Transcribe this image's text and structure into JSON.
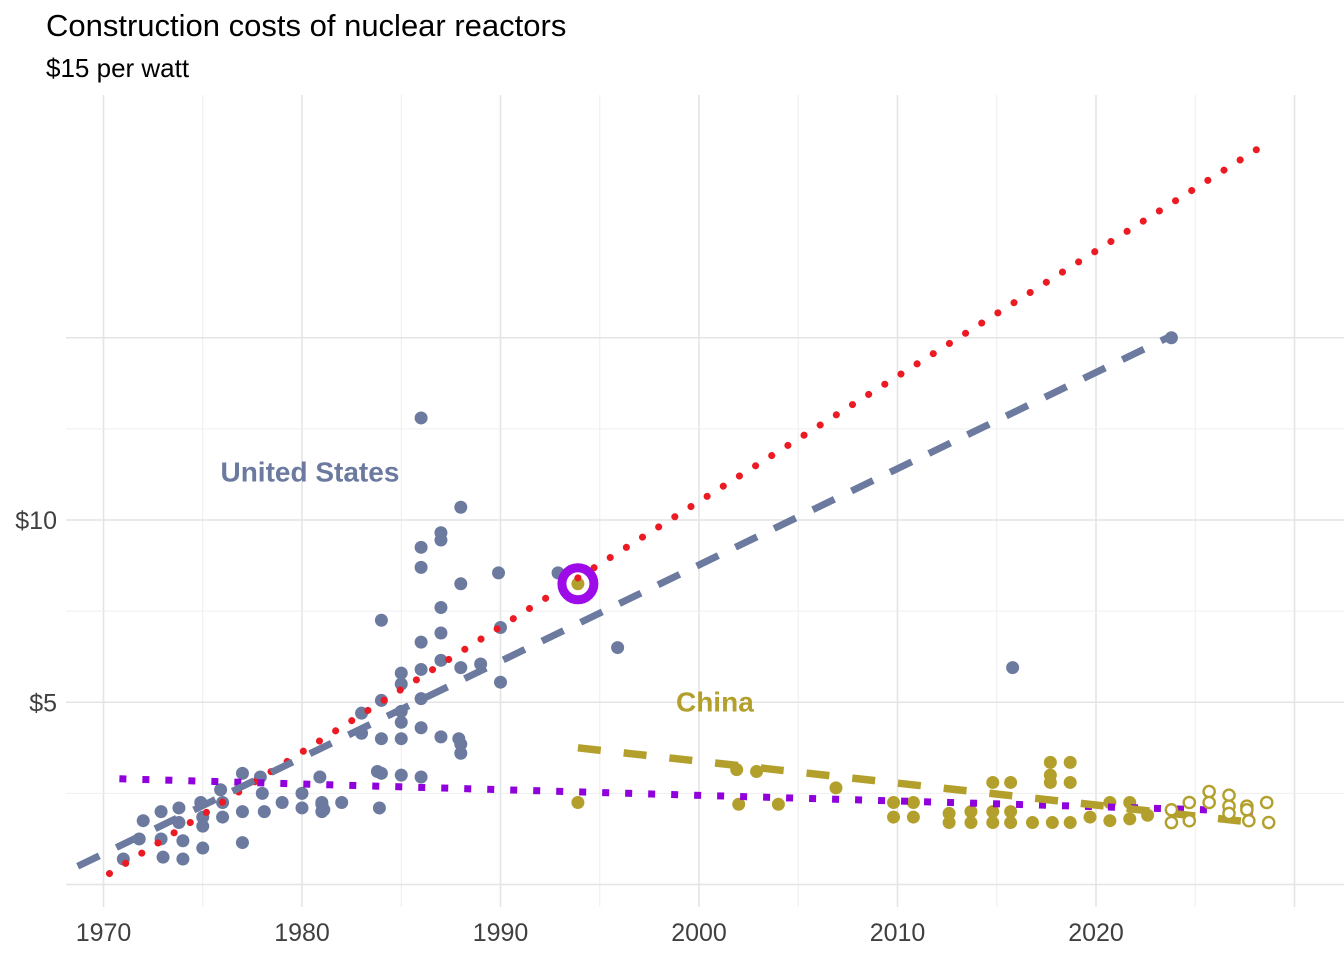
{
  "title": "Construction costs of nuclear reactors",
  "subtitle": "$15 per watt",
  "colors": {
    "us": "#6b7a9e",
    "china": "#b3a02c",
    "red_projection": "#ec1b23",
    "purple_projection": "#8f00dc",
    "highlight_ring": "#9d0be8",
    "grid_major": "#e4e4e4",
    "grid_minor": "#efefef",
    "axis_text": "#404040",
    "background": "#ffffff"
  },
  "chart_data": {
    "type": "scatter",
    "title": "Construction costs of nuclear reactors",
    "subtitle": "$15 per watt",
    "ylabel_unit": "$ per watt",
    "x_range": [
      1968,
      2032.5
    ],
    "y_range": [
      -0.6,
      21.7
    ],
    "grid": "on",
    "legend_position": "none",
    "x_ticks": [
      1970,
      1980,
      1990,
      2000,
      2010,
      2020
    ],
    "y_ticks": [
      {
        "value": 5,
        "label": "$5"
      },
      {
        "value": 10,
        "label": "$10"
      }
    ],
    "x_grid": {
      "from": 1970,
      "to": 2030,
      "step": 5,
      "major_every": 10
    },
    "y_grid": {
      "major": [
        0,
        5,
        10,
        15
      ],
      "minor": [
        2.5,
        7.5,
        12.5
      ]
    },
    "series": [
      {
        "name": "United States",
        "color": "#6b7a9e",
        "marker": "circle",
        "points": [
          [
            1971.0,
            0.7
          ],
          [
            1971.8,
            1.25
          ],
          [
            1972.0,
            1.75
          ],
          [
            1972.9,
            2.0
          ],
          [
            1972.9,
            1.25
          ],
          [
            1973.0,
            0.75
          ],
          [
            1973.8,
            2.1
          ],
          [
            1973.8,
            1.7
          ],
          [
            1974.0,
            1.2
          ],
          [
            1974.0,
            0.7
          ],
          [
            1974.9,
            2.25
          ],
          [
            1975.0,
            1.85
          ],
          [
            1975.0,
            1.6
          ],
          [
            1975.0,
            1.0
          ],
          [
            1975.9,
            2.6
          ],
          [
            1976.0,
            2.25
          ],
          [
            1976.0,
            1.85
          ],
          [
            1977.0,
            3.05
          ],
          [
            1977.0,
            2.0
          ],
          [
            1977.0,
            1.15
          ],
          [
            1977.9,
            2.95
          ],
          [
            1978.0,
            2.5
          ],
          [
            1978.1,
            2.0
          ],
          [
            1979.0,
            2.25
          ],
          [
            1980.0,
            2.5
          ],
          [
            1980.0,
            2.1
          ],
          [
            1980.9,
            2.95
          ],
          [
            1981.0,
            2.25
          ],
          [
            1981.0,
            2.0
          ],
          [
            1981.0,
            2.2
          ],
          [
            1981.1,
            2.05
          ],
          [
            1982.0,
            2.25
          ],
          [
            1983.8,
            3.1
          ],
          [
            1983.9,
            2.1
          ],
          [
            1984.0,
            3.05
          ],
          [
            1985.0,
            3.0
          ],
          [
            1986.0,
            2.95
          ],
          [
            1984.0,
            5.05
          ],
          [
            1983.0,
            4.7
          ],
          [
            1983.0,
            4.15
          ],
          [
            1985.0,
            4.75
          ],
          [
            1985.0,
            4.45
          ],
          [
            1984.0,
            4.0
          ],
          [
            1985.0,
            4.0
          ],
          [
            1986.0,
            4.3
          ],
          [
            1986.0,
            5.1
          ],
          [
            1987.0,
            4.05
          ],
          [
            1987.9,
            4.0
          ],
          [
            1988.0,
            3.85
          ],
          [
            1988.0,
            3.6
          ],
          [
            1986.0,
            12.8
          ],
          [
            1988.0,
            10.35
          ],
          [
            1987.0,
            9.65
          ],
          [
            1987.0,
            9.45
          ],
          [
            1986.0,
            9.25
          ],
          [
            1986.0,
            8.7
          ],
          [
            1988.0,
            8.25
          ],
          [
            1989.9,
            8.55
          ],
          [
            1992.9,
            8.55
          ],
          [
            1987.0,
            7.6
          ],
          [
            1984.0,
            7.25
          ],
          [
            1990.0,
            7.05
          ],
          [
            1986.0,
            6.65
          ],
          [
            1987.0,
            6.9
          ],
          [
            1986.0,
            5.9
          ],
          [
            1987.0,
            6.15
          ],
          [
            1988.0,
            5.95
          ],
          [
            1989.0,
            6.05
          ],
          [
            1990.0,
            5.55
          ],
          [
            1985.0,
            5.8
          ],
          [
            1985.0,
            5.5
          ],
          [
            1995.9,
            6.5
          ],
          [
            2015.8,
            5.95
          ],
          [
            2023.8,
            15.0
          ]
        ]
      },
      {
        "name": "China",
        "color": "#b3a02c",
        "marker": "circle",
        "points": [
          [
            1993.9,
            8.25
          ],
          [
            1993.9,
            2.25
          ],
          [
            2001.9,
            3.15
          ],
          [
            2002.9,
            3.1
          ],
          [
            2002.0,
            2.2
          ],
          [
            2004.0,
            2.2
          ],
          [
            2006.9,
            2.65
          ],
          [
            2009.8,
            2.25
          ],
          [
            2009.8,
            1.85
          ],
          [
            2010.8,
            2.25
          ],
          [
            2010.8,
            1.85
          ],
          [
            2012.6,
            1.95
          ],
          [
            2012.6,
            1.7
          ],
          [
            2013.7,
            2.0
          ],
          [
            2013.7,
            1.7
          ],
          [
            2014.8,
            2.8
          ],
          [
            2014.8,
            2.0
          ],
          [
            2014.8,
            1.7
          ],
          [
            2015.7,
            2.8
          ],
          [
            2015.7,
            2.0
          ],
          [
            2015.7,
            1.7
          ],
          [
            2016.8,
            1.7
          ],
          [
            2017.7,
            3.35
          ],
          [
            2017.7,
            3.0
          ],
          [
            2017.7,
            2.8
          ],
          [
            2017.8,
            1.7
          ],
          [
            2018.7,
            3.35
          ],
          [
            2018.7,
            2.8
          ],
          [
            2018.7,
            1.7
          ],
          [
            2019.7,
            1.85
          ],
          [
            2020.7,
            2.25
          ],
          [
            2020.7,
            1.75
          ],
          [
            2021.7,
            2.25
          ],
          [
            2021.7,
            1.8
          ],
          [
            2022.6,
            1.9
          ]
        ]
      },
      {
        "name": "China (open markers)",
        "color": "#b3a02c",
        "marker": "open-circle",
        "points": [
          [
            2023.8,
            2.05
          ],
          [
            2023.8,
            1.7
          ],
          [
            2024.7,
            2.25
          ],
          [
            2024.7,
            1.75
          ],
          [
            2025.7,
            2.55
          ],
          [
            2025.7,
            2.25
          ],
          [
            2026.7,
            2.45
          ],
          [
            2026.7,
            2.15
          ],
          [
            2026.7,
            1.95
          ],
          [
            2027.6,
            2.15
          ],
          [
            2027.6,
            2.05
          ],
          [
            2027.7,
            1.75
          ],
          [
            2028.6,
            2.25
          ],
          [
            2028.7,
            1.7
          ]
        ]
      }
    ],
    "trend_lines": [
      {
        "name": "purple-projection-line",
        "color": "#8f00dc",
        "style": "dotted-square",
        "width": 7,
        "from": [
          1970.8,
          2.9
        ],
        "to": [
          2028.7,
          2.0
        ]
      },
      {
        "name": "red-projection-line",
        "color": "#ec1b23",
        "style": "dotted",
        "width": 7,
        "from": [
          1970.3,
          0.3
        ],
        "to": [
          2028.2,
          20.2
        ]
      },
      {
        "name": "china-trend-line",
        "color": "#b3a02c",
        "style": "dashed-long",
        "width": 7.5,
        "from": [
          1993.9,
          3.75
        ],
        "to": [
          2028.8,
          1.65
        ]
      },
      {
        "name": "us-trend-line",
        "color": "#6b7a9e",
        "style": "dashed",
        "width": 7,
        "from": [
          1968.7,
          0.5
        ],
        "to": [
          2023.6,
          15.0
        ]
      }
    ],
    "annotations": [
      {
        "text": "United States",
        "x": 1980.4,
        "y": 11.05,
        "color": "#6b7a9e"
      },
      {
        "text": "China",
        "x": 2000.8,
        "y": 4.75,
        "color": "#b3a02c"
      }
    ],
    "highlight": {
      "x": 1993.9,
      "y": 8.25,
      "ring_color": "#9d0be8",
      "radius": 16,
      "stroke_width": 9
    }
  }
}
